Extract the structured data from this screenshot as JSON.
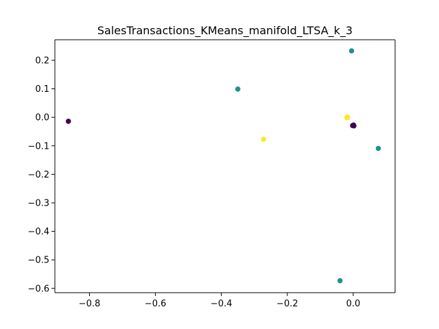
{
  "chart_data": {
    "type": "scatter",
    "title": "SalesTransactions_KMeans_manifold_LTSA_k_3",
    "xlabel": "",
    "ylabel": "",
    "xlim": [
      -0.905,
      0.127
    ],
    "ylim": [
      -0.615,
      0.272
    ],
    "xticks": [
      -0.8,
      -0.6,
      -0.4,
      -0.2,
      0.0
    ],
    "xtick_labels": [
      "−0.8",
      "−0.6",
      "−0.4",
      "−0.2",
      "0.0"
    ],
    "yticks": [
      0.2,
      0.1,
      0.0,
      -0.1,
      -0.2,
      -0.3,
      -0.4,
      -0.5,
      -0.6
    ],
    "ytick_labels": [
      "0.2",
      "0.1",
      "0.0",
      "−0.1",
      "−0.2",
      "−0.3",
      "−0.4",
      "−0.5",
      "−0.6"
    ],
    "grid": false,
    "series": [
      {
        "color": "#440154",
        "points": [
          {
            "x": -0.864,
            "y": -0.014
          },
          {
            "x": 0.0,
            "y": -0.028
          },
          {
            "x": 0.002,
            "y": -0.03
          },
          {
            "x": -0.002,
            "y": -0.029
          },
          {
            "x": 0.001,
            "y": -0.027
          }
        ]
      },
      {
        "color": "#21918c",
        "points": [
          {
            "x": -0.005,
            "y": 0.233
          },
          {
            "x": -0.35,
            "y": 0.099
          },
          {
            "x": -0.018,
            "y": 0.0
          },
          {
            "x": 0.076,
            "y": -0.109
          },
          {
            "x": -0.04,
            "y": -0.573
          }
        ]
      },
      {
        "color": "#fde725",
        "points": [
          {
            "x": -0.272,
            "y": -0.077
          },
          {
            "x": -0.018,
            "y": 0.001
          },
          {
            "x": -0.019,
            "y": -0.001
          },
          {
            "x": -0.017,
            "y": 0.0
          }
        ]
      }
    ]
  }
}
